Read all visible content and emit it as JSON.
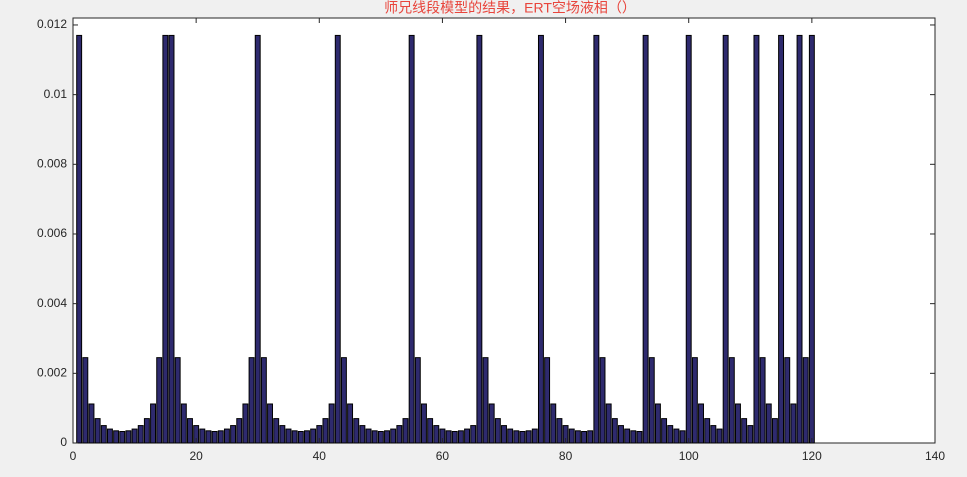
{
  "chart_data": {
    "type": "bar",
    "title": "师兄线段模型的结果，ERT空场液相（）",
    "x": [
      1,
      2,
      3,
      4,
      5,
      6,
      7,
      8,
      9,
      10,
      11,
      12,
      13,
      14,
      15,
      16,
      17,
      18,
      19,
      20,
      21,
      22,
      23,
      24,
      25,
      26,
      27,
      28,
      29,
      30,
      31,
      32,
      33,
      34,
      35,
      36,
      37,
      38,
      39,
      40,
      41,
      42,
      43,
      44,
      45,
      46,
      47,
      48,
      49,
      50,
      51,
      52,
      53,
      54,
      55,
      56,
      57,
      58,
      59,
      60,
      61,
      62,
      63,
      64,
      65,
      66,
      67,
      68,
      69,
      70,
      71,
      72,
      73,
      74,
      75,
      76,
      77,
      78,
      79,
      80,
      81,
      82,
      83,
      84,
      85,
      86,
      87,
      88,
      89,
      90,
      91,
      92,
      93,
      94,
      95,
      96,
      97,
      98,
      99,
      100,
      101,
      102,
      103,
      104,
      105,
      106,
      107,
      108,
      109,
      110,
      111,
      112,
      113,
      114,
      115,
      116,
      117,
      118,
      119,
      120
    ],
    "values": [
      0.0117,
      0.00245,
      0.00112,
      0.0007,
      0.0005,
      0.0004,
      0.00035,
      0.00033,
      0.00035,
      0.0004,
      0.0005,
      0.0007,
      0.00112,
      0.00245,
      0.0117,
      0.0117,
      0.00245,
      0.00112,
      0.0007,
      0.0005,
      0.0004,
      0.00035,
      0.00033,
      0.00035,
      0.0004,
      0.0005,
      0.0007,
      0.00112,
      0.00245,
      0.0117,
      0.00245,
      0.00112,
      0.0007,
      0.0005,
      0.0004,
      0.00035,
      0.00033,
      0.00035,
      0.0004,
      0.0005,
      0.0007,
      0.00112,
      0.0117,
      0.00245,
      0.00112,
      0.0007,
      0.0005,
      0.0004,
      0.00035,
      0.00033,
      0.00035,
      0.0004,
      0.0005,
      0.0007,
      0.0117,
      0.00245,
      0.00112,
      0.0007,
      0.0005,
      0.0004,
      0.00035,
      0.00033,
      0.00035,
      0.0004,
      0.0005,
      0.0117,
      0.00245,
      0.00112,
      0.0007,
      0.0005,
      0.0004,
      0.00035,
      0.00033,
      0.00035,
      0.0004,
      0.0117,
      0.00245,
      0.00112,
      0.0007,
      0.0005,
      0.0004,
      0.00035,
      0.00033,
      0.00035,
      0.0117,
      0.00245,
      0.00112,
      0.0007,
      0.0005,
      0.0004,
      0.00035,
      0.00033,
      0.0117,
      0.00245,
      0.00112,
      0.0007,
      0.0005,
      0.0004,
      0.00035,
      0.0117,
      0.00245,
      0.00112,
      0.0007,
      0.0005,
      0.0004,
      0.0117,
      0.00245,
      0.00112,
      0.0007,
      0.0005,
      0.0117,
      0.00245,
      0.00112,
      0.0007,
      0.0117,
      0.00245,
      0.00112,
      0.0117,
      0.00245,
      0.0117
    ],
    "color": "#2e2a6e",
    "edge_color": "#000000",
    "xlim": [
      0,
      140
    ],
    "xticks": [
      0,
      20,
      40,
      60,
      80,
      100,
      120,
      140
    ],
    "ylim": [
      0,
      0.0122
    ],
    "yticks": [
      0,
      0.002,
      0.004,
      0.006,
      0.008,
      0.01,
      0.012
    ]
  }
}
